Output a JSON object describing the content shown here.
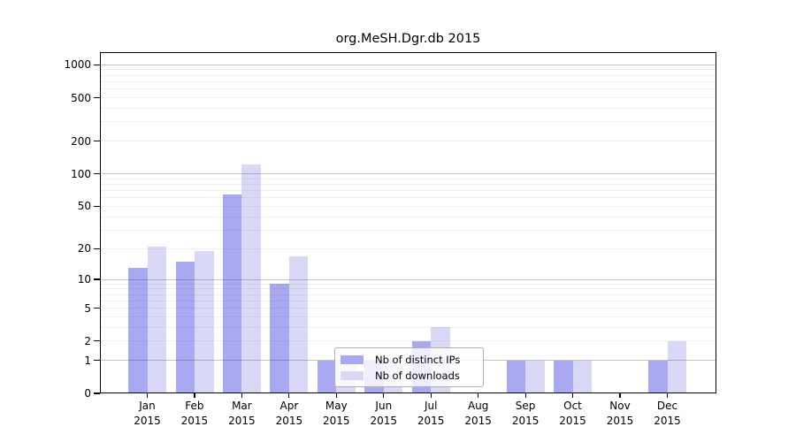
{
  "chart_data": {
    "type": "bar",
    "title": "org.MeSH.Dgr.db 2015",
    "year": "2015",
    "months": [
      "Jan",
      "Feb",
      "Mar",
      "Apr",
      "May",
      "Jun",
      "Jul",
      "Aug",
      "Sep",
      "Oct",
      "Nov",
      "Dec"
    ],
    "series": [
      {
        "name": "Nb of distinct IPs",
        "color": "#a9a9f2",
        "values": [
          13,
          15,
          64,
          9,
          1,
          1,
          2,
          0,
          1,
          1,
          0,
          1
        ]
      },
      {
        "name": "Nb of downloads",
        "color": "#d9d9f7",
        "values": [
          21,
          19,
          123,
          17,
          1,
          1,
          3,
          0,
          1,
          1,
          0,
          2
        ]
      }
    ],
    "y_axis": {
      "scale": "log10(value+1)",
      "tick_labels": [
        1000,
        500,
        200,
        100,
        50,
        20,
        10,
        5,
        2,
        1,
        0
      ],
      "major_gridlines": [
        1,
        10,
        100,
        1000
      ],
      "minor_gridlines": [
        2,
        3,
        4,
        5,
        6,
        7,
        8,
        9,
        20,
        30,
        40,
        50,
        60,
        70,
        80,
        90,
        200,
        300,
        400,
        500,
        600,
        700,
        800,
        900
      ]
    },
    "x_axis": {
      "label_line2": "2015"
    },
    "legend": {
      "position": "lower-center"
    },
    "colors": {
      "background": "#ffffff",
      "axis": "#000000"
    }
  }
}
